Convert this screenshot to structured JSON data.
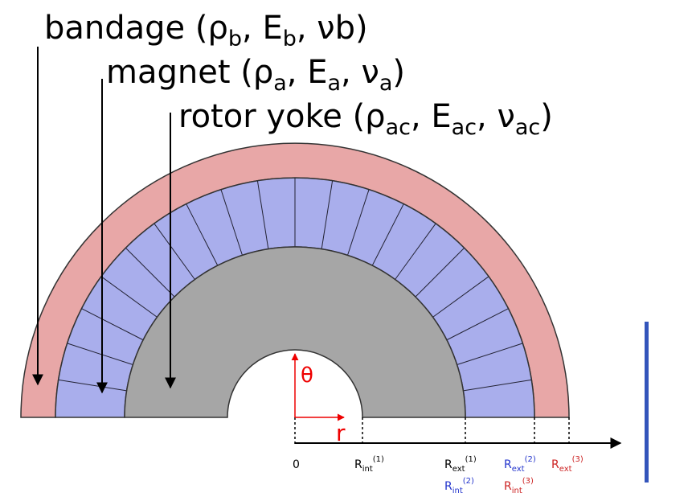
{
  "labels": [
    {
      "name": "bandage",
      "parts": [
        {
          "text": "bandage (ρ"
        },
        {
          "sub": "b"
        },
        {
          "text": ", E"
        },
        {
          "sub": "b"
        },
        {
          "text": ", νb)"
        }
      ]
    },
    {
      "name": "magnet",
      "parts": [
        {
          "text": "magnet (ρ"
        },
        {
          "sub": "a"
        },
        {
          "text": ", E"
        },
        {
          "sub": "a"
        },
        {
          "text": ", ν"
        },
        {
          "sub": "a"
        },
        {
          "text": ")"
        }
      ]
    },
    {
      "name": "rotor-yoke",
      "parts": [
        {
          "text": "rotor yoke (ρ"
        },
        {
          "sub": "ac"
        },
        {
          "text": ", E"
        },
        {
          "sub": "ac"
        },
        {
          "text": ", ν"
        },
        {
          "sub": "ac"
        },
        {
          "text": ")"
        }
      ]
    }
  ],
  "axes": {
    "theta": "θ",
    "r": "r"
  },
  "radius_labels": [
    {
      "text": "0",
      "color": "#000000"
    },
    {
      "text": "R",
      "sub": "int",
      "sup": "(1)",
      "color": "#000000"
    },
    {
      "text": "R",
      "sub": "ext",
      "sup": "(1)",
      "color": "#000000"
    },
    {
      "text": "R",
      "sub": "int",
      "sup": "(2)",
      "color": "#2233cc"
    },
    {
      "text": "R",
      "sub": "ext",
      "sup": "(2)",
      "color": "#2233cc"
    },
    {
      "text": "R",
      "sub": "int",
      "sup": "(3)",
      "color": "#cc2222"
    },
    {
      "text": "R",
      "sub": "ext",
      "sup": "(3)",
      "color": "#cc2222"
    }
  ]
}
